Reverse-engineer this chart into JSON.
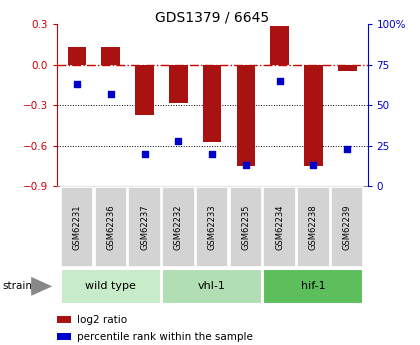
{
  "title": "GDS1379 / 6645",
  "samples": [
    "GSM62231",
    "GSM62236",
    "GSM62237",
    "GSM62232",
    "GSM62233",
    "GSM62235",
    "GSM62234",
    "GSM62238",
    "GSM62239"
  ],
  "log2_ratio": [
    0.13,
    0.13,
    -0.37,
    -0.28,
    -0.57,
    -0.75,
    0.29,
    -0.75,
    -0.05
  ],
  "percentile_rank": [
    63,
    57,
    20,
    28,
    20,
    13,
    65,
    13,
    23
  ],
  "ylim_left": [
    -0.9,
    0.3
  ],
  "ylim_right": [
    0,
    100
  ],
  "yticks_left": [
    0.3,
    0.0,
    -0.3,
    -0.6,
    -0.9
  ],
  "yticks_right": [
    100,
    75,
    50,
    25,
    0
  ],
  "groups": [
    {
      "name": "wild type",
      "indices": [
        0,
        1,
        2
      ],
      "color": "#c8ebc9"
    },
    {
      "name": "vhl-1",
      "indices": [
        3,
        4,
        5
      ],
      "color": "#b2deb4"
    },
    {
      "name": "hif-1",
      "indices": [
        6,
        7,
        8
      ],
      "color": "#5cbf5c"
    }
  ],
  "bar_color": "#aa1111",
  "dot_color": "#0000cc",
  "bar_width": 0.55,
  "bg_color": "#ffffff",
  "plot_bg": "#ffffff",
  "sample_bg": "#d3d3d3",
  "hline_zero_color": "#cc0000",
  "hline_dotted_color": "#000000",
  "strain_label": "strain",
  "legend_bar_label": "log2 ratio",
  "legend_dot_label": "percentile rank within the sample",
  "left_axis_color": "#cc0000",
  "right_axis_color": "#0000cc"
}
